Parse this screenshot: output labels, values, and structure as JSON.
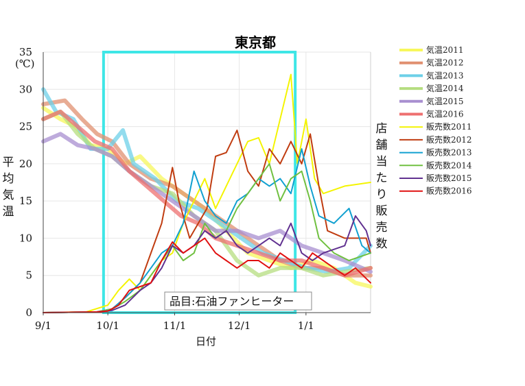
{
  "chart_data": {
    "type": "line",
    "title": "東京都",
    "ylabel_left": "平均気温",
    "yunit_left": "(℃)",
    "ylabel_right": "店舗当たり販売数",
    "xlabel": "日付",
    "annotation": "品目:石油ファンヒーター",
    "x_ticks": [
      "9/1",
      "10/1",
      "11/1",
      "12/1",
      "1/1"
    ],
    "x_tick_days": [
      0,
      30,
      61,
      91,
      122
    ],
    "x_range_days": [
      0,
      152
    ],
    "ylim": [
      0,
      35
    ],
    "y_ticks": [
      "0",
      "5",
      "10",
      "15",
      "20",
      "25",
      "30",
      "35"
    ],
    "highlight_box_days": [
      28,
      117
    ],
    "series": [
      {
        "name": "気温2011",
        "kind": "temp",
        "color": "#f7f75c",
        "points": [
          [
            0,
            27.5
          ],
          [
            8,
            26
          ],
          [
            15,
            25
          ],
          [
            22,
            22.5
          ],
          [
            30,
            22
          ],
          [
            38,
            20
          ],
          [
            45,
            21
          ],
          [
            55,
            18
          ],
          [
            65,
            16
          ],
          [
            75,
            14
          ],
          [
            85,
            11
          ],
          [
            95,
            8
          ],
          [
            105,
            7
          ],
          [
            115,
            6
          ],
          [
            125,
            7
          ],
          [
            135,
            6
          ],
          [
            145,
            4
          ],
          [
            152,
            3.5
          ]
        ]
      },
      {
        "name": "気温2012",
        "kind": "temp",
        "color": "#e09070",
        "points": [
          [
            0,
            28
          ],
          [
            10,
            28.5
          ],
          [
            18,
            26
          ],
          [
            25,
            24
          ],
          [
            32,
            23
          ],
          [
            40,
            20
          ],
          [
            50,
            18
          ],
          [
            60,
            17
          ],
          [
            70,
            15
          ],
          [
            80,
            13
          ],
          [
            90,
            11
          ],
          [
            100,
            9
          ],
          [
            110,
            7
          ],
          [
            120,
            6
          ],
          [
            130,
            6
          ],
          [
            140,
            5
          ],
          [
            152,
            5
          ]
        ]
      },
      {
        "name": "気温2013",
        "kind": "temp",
        "color": "#6dd0e8",
        "points": [
          [
            0,
            30
          ],
          [
            6,
            27
          ],
          [
            14,
            26
          ],
          [
            22,
            22
          ],
          [
            30,
            22
          ],
          [
            37,
            24.5
          ],
          [
            42,
            20
          ],
          [
            52,
            18
          ],
          [
            62,
            15
          ],
          [
            72,
            14
          ],
          [
            82,
            12
          ],
          [
            92,
            10
          ],
          [
            102,
            8
          ],
          [
            112,
            7
          ],
          [
            122,
            6
          ],
          [
            132,
            5.5
          ],
          [
            142,
            6
          ],
          [
            152,
            9
          ]
        ]
      },
      {
        "name": "気温2014",
        "kind": "temp",
        "color": "#b5dd80",
        "points": [
          [
            0,
            26
          ],
          [
            8,
            27
          ],
          [
            16,
            24
          ],
          [
            24,
            22
          ],
          [
            32,
            21
          ],
          [
            40,
            19
          ],
          [
            50,
            17
          ],
          [
            60,
            16
          ],
          [
            70,
            13
          ],
          [
            80,
            11
          ],
          [
            90,
            7
          ],
          [
            100,
            5
          ],
          [
            110,
            6
          ],
          [
            120,
            6
          ],
          [
            130,
            5
          ],
          [
            140,
            5.5
          ],
          [
            152,
            6
          ]
        ]
      },
      {
        "name": "気温2015",
        "kind": "temp",
        "color": "#a88fd0",
        "points": [
          [
            0,
            23
          ],
          [
            8,
            24
          ],
          [
            16,
            22.5
          ],
          [
            24,
            22
          ],
          [
            32,
            21
          ],
          [
            40,
            19
          ],
          [
            50,
            17
          ],
          [
            60,
            15
          ],
          [
            70,
            13
          ],
          [
            80,
            11
          ],
          [
            90,
            11
          ],
          [
            100,
            10
          ],
          [
            110,
            11
          ],
          [
            120,
            9
          ],
          [
            130,
            8
          ],
          [
            140,
            7
          ],
          [
            152,
            5.5
          ]
        ]
      },
      {
        "name": "気温2016",
        "kind": "temp",
        "color": "#ee7070",
        "points": [
          [
            0,
            26
          ],
          [
            8,
            27
          ],
          [
            16,
            25
          ],
          [
            24,
            23
          ],
          [
            32,
            22
          ],
          [
            40,
            19
          ],
          [
            48,
            17
          ],
          [
            56,
            15
          ],
          [
            64,
            13
          ],
          [
            72,
            12
          ],
          [
            80,
            10
          ],
          [
            90,
            9
          ],
          [
            100,
            8
          ],
          [
            110,
            7
          ],
          [
            120,
            7
          ],
          [
            130,
            6
          ],
          [
            140,
            5
          ],
          [
            152,
            6
          ]
        ]
      },
      {
        "name": "販売数2011",
        "kind": "sales",
        "color": "#f4f400",
        "points": [
          [
            0,
            0
          ],
          [
            20,
            0.1
          ],
          [
            30,
            1
          ],
          [
            35,
            3
          ],
          [
            40,
            4.5
          ],
          [
            45,
            3
          ],
          [
            50,
            5
          ],
          [
            55,
            7
          ],
          [
            60,
            8
          ],
          [
            65,
            12
          ],
          [
            70,
            15
          ],
          [
            75,
            18
          ],
          [
            80,
            14
          ],
          [
            85,
            17
          ],
          [
            90,
            20
          ],
          [
            95,
            23
          ],
          [
            100,
            23.5
          ],
          [
            105,
            20
          ],
          [
            110,
            26
          ],
          [
            115,
            32
          ],
          [
            118,
            20
          ],
          [
            122,
            26
          ],
          [
            126,
            18
          ],
          [
            130,
            16
          ],
          [
            140,
            17
          ],
          [
            152,
            17.5
          ]
        ]
      },
      {
        "name": "販売数2012",
        "kind": "sales",
        "color": "#c03c10",
        "points": [
          [
            0,
            0
          ],
          [
            25,
            0.1
          ],
          [
            32,
            0.5
          ],
          [
            38,
            2
          ],
          [
            45,
            4
          ],
          [
            50,
            8
          ],
          [
            55,
            12
          ],
          [
            60,
            19.5
          ],
          [
            63,
            15
          ],
          [
            68,
            10
          ],
          [
            72,
            12
          ],
          [
            76,
            14
          ],
          [
            80,
            21
          ],
          [
            85,
            21.5
          ],
          [
            90,
            24.5
          ],
          [
            95,
            19
          ],
          [
            100,
            17
          ],
          [
            105,
            22
          ],
          [
            110,
            20
          ],
          [
            115,
            23
          ],
          [
            120,
            20
          ],
          [
            124,
            24
          ],
          [
            128,
            17
          ],
          [
            132,
            11
          ],
          [
            140,
            10
          ],
          [
            150,
            10
          ],
          [
            152,
            8
          ]
        ]
      },
      {
        "name": "販売数2013",
        "kind": "sales",
        "color": "#10a0d0",
        "points": [
          [
            0,
            0
          ],
          [
            25,
            0.1
          ],
          [
            32,
            0.5
          ],
          [
            38,
            2
          ],
          [
            45,
            4
          ],
          [
            50,
            6
          ],
          [
            55,
            8
          ],
          [
            60,
            9
          ],
          [
            65,
            12
          ],
          [
            70,
            19
          ],
          [
            75,
            15
          ],
          [
            80,
            13
          ],
          [
            85,
            12
          ],
          [
            90,
            15
          ],
          [
            95,
            16
          ],
          [
            100,
            18
          ],
          [
            105,
            17
          ],
          [
            110,
            18
          ],
          [
            115,
            16
          ],
          [
            120,
            22
          ],
          [
            124,
            17
          ],
          [
            128,
            13
          ],
          [
            135,
            12
          ],
          [
            142,
            14
          ],
          [
            148,
            9
          ],
          [
            152,
            8
          ]
        ]
      },
      {
        "name": "販売数2014",
        "kind": "sales",
        "color": "#70c040",
        "points": [
          [
            0,
            0
          ],
          [
            25,
            0.1
          ],
          [
            32,
            0.5
          ],
          [
            38,
            1.5
          ],
          [
            45,
            3
          ],
          [
            50,
            5
          ],
          [
            55,
            7
          ],
          [
            60,
            9
          ],
          [
            65,
            7
          ],
          [
            70,
            8
          ],
          [
            75,
            12
          ],
          [
            80,
            10
          ],
          [
            85,
            11
          ],
          [
            90,
            14
          ],
          [
            95,
            16
          ],
          [
            100,
            18
          ],
          [
            105,
            20
          ],
          [
            110,
            15
          ],
          [
            115,
            18
          ],
          [
            120,
            19
          ],
          [
            124,
            15
          ],
          [
            128,
            10
          ],
          [
            135,
            8
          ],
          [
            142,
            7
          ],
          [
            152,
            8
          ]
        ]
      },
      {
        "name": "販売数2015",
        "kind": "sales",
        "color": "#603090",
        "points": [
          [
            0,
            0
          ],
          [
            25,
            0.1
          ],
          [
            32,
            0.3
          ],
          [
            38,
            1
          ],
          [
            45,
            3
          ],
          [
            50,
            4
          ],
          [
            55,
            6
          ],
          [
            60,
            9
          ],
          [
            65,
            8
          ],
          [
            70,
            9
          ],
          [
            75,
            11
          ],
          [
            80,
            10
          ],
          [
            85,
            11
          ],
          [
            90,
            9
          ],
          [
            95,
            8
          ],
          [
            100,
            9
          ],
          [
            105,
            10
          ],
          [
            110,
            9
          ],
          [
            115,
            12
          ],
          [
            120,
            8
          ],
          [
            125,
            7
          ],
          [
            130,
            8
          ],
          [
            140,
            9
          ],
          [
            145,
            13
          ],
          [
            150,
            11
          ],
          [
            152,
            9
          ]
        ]
      },
      {
        "name": "販売数2016",
        "kind": "sales",
        "color": "#e01010",
        "points": [
          [
            0,
            0
          ],
          [
            25,
            0.1
          ],
          [
            30,
            0.2
          ],
          [
            35,
            1
          ],
          [
            40,
            3
          ],
          [
            45,
            3.5
          ],
          [
            50,
            4
          ],
          [
            55,
            7
          ],
          [
            60,
            9.5
          ],
          [
            65,
            8
          ],
          [
            70,
            9
          ],
          [
            75,
            10
          ],
          [
            80,
            8
          ],
          [
            85,
            7
          ],
          [
            90,
            6
          ],
          [
            95,
            7
          ],
          [
            100,
            7
          ],
          [
            105,
            6
          ],
          [
            110,
            8
          ],
          [
            115,
            7
          ],
          [
            120,
            6
          ],
          [
            125,
            8
          ],
          [
            130,
            7
          ],
          [
            135,
            6
          ],
          [
            140,
            5
          ],
          [
            145,
            6
          ],
          [
            152,
            4
          ]
        ]
      }
    ]
  }
}
